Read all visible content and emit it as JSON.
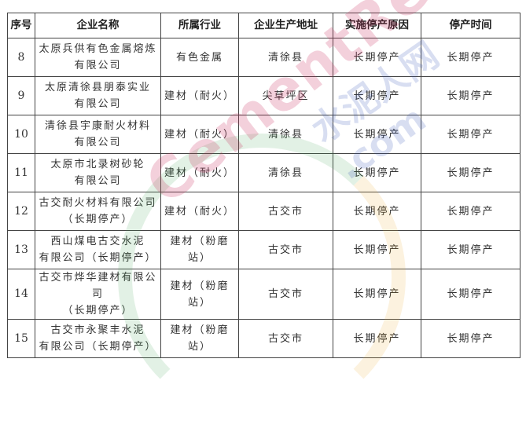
{
  "table": {
    "headers": [
      "序号",
      "企业名称",
      "所属行业",
      "企业生产地址",
      "实施停产原因",
      "停产时间"
    ],
    "rows": [
      {
        "no": "8",
        "name1": "太原兵供有色金属熔炼",
        "name2": "有限公司",
        "industry": "有色金属",
        "address": "清徐县",
        "reason": "长期停产",
        "time": "长期停产"
      },
      {
        "no": "9",
        "name1": "太原清徐县朋泰实业",
        "name2": "有限公司",
        "industry": "建材（耐火）",
        "address": "尖草坪区",
        "reason": "长期停产",
        "time": "长期停产"
      },
      {
        "no": "10",
        "name1": "清徐县宇康耐火材料",
        "name2": "有限公司",
        "industry": "建材（耐火）",
        "address": "清徐县",
        "reason": "长期停产",
        "time": "长期停产"
      },
      {
        "no": "11",
        "name1": "太原市北录树砂轮",
        "name2": "有限公司",
        "industry": "建材（耐火）",
        "address": "清徐县",
        "reason": "长期停产",
        "time": "长期停产"
      },
      {
        "no": "12",
        "name1": "古交耐火材料有限公司",
        "name2": "（长期停产）",
        "industry": "建材（耐火）",
        "address": "古交市",
        "reason": "长期停产",
        "time": "长期停产"
      },
      {
        "no": "13",
        "name1": "西山煤电古交水泥",
        "name2": "有限公司（长期停产）",
        "industry": "建材（粉磨站）",
        "address": "古交市",
        "reason": "长期停产",
        "time": "长期停产"
      },
      {
        "no": "14",
        "name1": "古交市烨华建材有限公司",
        "name2": "（长期停产）",
        "industry": "建材（粉磨站）",
        "address": "古交市",
        "reason": "长期停产",
        "time": "长期停产"
      },
      {
        "no": "15",
        "name1": "古交市永聚丰水泥",
        "name2": "有限公司（长期停产）",
        "industry": "建材（粉磨站）",
        "address": "古交市",
        "reason": "长期停产",
        "time": "长期停产"
      }
    ]
  },
  "watermark": {
    "text1": "CementRen",
    "text2": "水泥人网 .com"
  }
}
